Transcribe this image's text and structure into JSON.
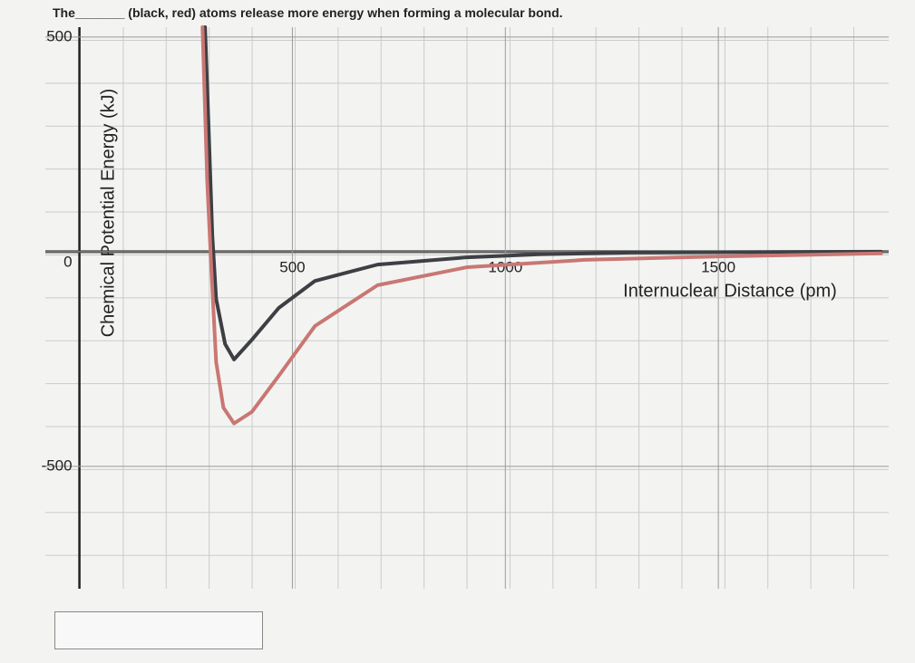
{
  "question": "The_______ (black, red) atoms release more energy when forming a molecular bond.",
  "chart_data": {
    "type": "line",
    "xlabel": "Internuclear Distance (pm)",
    "ylabel": "Chemical Potential Energy (kJ)",
    "xlim": [
      -80,
      1900
    ],
    "ylim": [
      -785,
      523
    ],
    "xticks": [
      500,
      1000,
      1500
    ],
    "yticks": [
      500,
      0,
      -500
    ],
    "series": [
      {
        "color": "#3d3f44",
        "x": [
          295,
          304,
          312,
          321,
          342,
          363,
          405,
          468,
          553,
          700,
          911,
          1080,
          1291,
          1882
        ],
        "values": [
          523,
          270,
          38,
          -110,
          -215,
          -251,
          -205,
          -131,
          -68,
          -30,
          -13,
          -6,
          -2,
          0
        ]
      },
      {
        "color": "#c97773",
        "x": [
          289,
          300,
          310,
          321,
          338,
          363,
          405,
          468,
          553,
          700,
          911,
          1186,
          1502,
          1882
        ],
        "values": [
          523,
          165,
          -46,
          -257,
          -363,
          -400,
          -373,
          -289,
          -173,
          -78,
          -36,
          -19,
          -11,
          -4
        ]
      }
    ]
  }
}
